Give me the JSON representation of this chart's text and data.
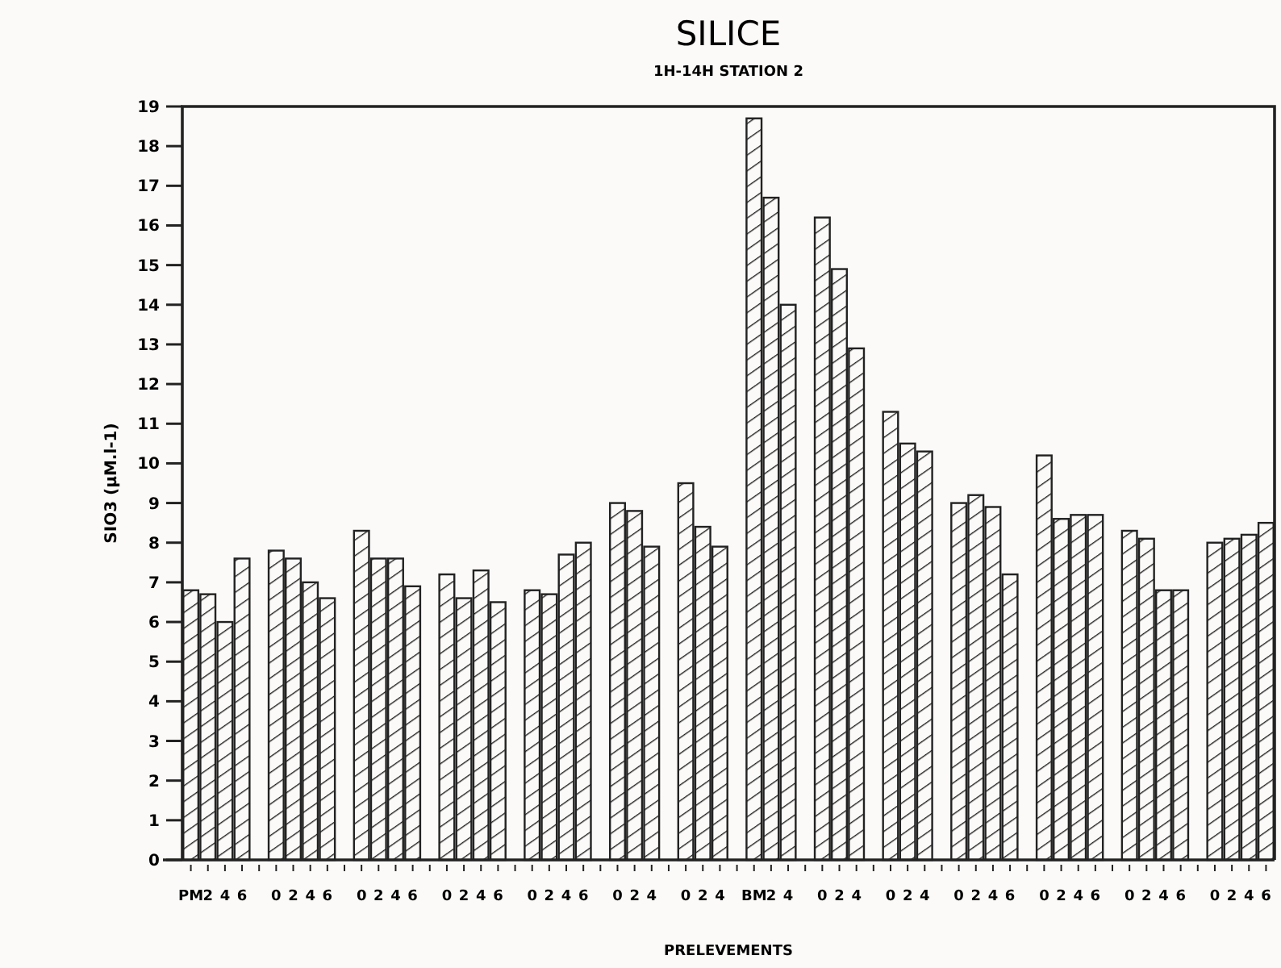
{
  "chart_data": {
    "type": "bar",
    "title": "SILICE",
    "subtitle": "1H-14H STATION 2",
    "xlabel": "PRELEVEMENTS",
    "ylabel": "SIO3 (µM.l-1)",
    "categories": [
      "PM",
      "2",
      "4",
      "6",
      null,
      "0",
      "2",
      "4",
      "6",
      null,
      "0",
      "2",
      "4",
      "6",
      null,
      "0",
      "2",
      "4",
      "6",
      null,
      "0",
      "2",
      "4",
      "6",
      null,
      "0",
      "2",
      "4",
      null,
      "0",
      "2",
      "4",
      null,
      "BM",
      "2",
      "4",
      null,
      "0",
      "2",
      "4",
      null,
      "0",
      "2",
      "4",
      null,
      "0",
      "2",
      "4",
      "6",
      null,
      "0",
      "2",
      "4",
      "6",
      null,
      "0",
      "2",
      "4",
      "6",
      null,
      "0",
      "2",
      "4",
      "6"
    ],
    "values": [
      6.8,
      6.7,
      6.0,
      7.6,
      null,
      7.8,
      7.6,
      7.0,
      6.6,
      null,
      8.3,
      7.6,
      7.6,
      6.9,
      null,
      7.2,
      6.6,
      7.3,
      6.5,
      null,
      6.8,
      6.7,
      7.7,
      8.0,
      null,
      9.0,
      8.8,
      7.9,
      null,
      9.5,
      8.4,
      7.9,
      null,
      18.7,
      16.7,
      14.0,
      null,
      16.2,
      14.9,
      12.9,
      null,
      11.3,
      10.5,
      10.3,
      null,
      9.0,
      9.2,
      8.9,
      7.2,
      null,
      10.2,
      8.6,
      8.7,
      8.7,
      null,
      8.3,
      8.1,
      6.8,
      6.8,
      null,
      8.0,
      8.1,
      8.2,
      8.5
    ],
    "color": "#222222",
    "ylim": [
      0,
      19
    ],
    "yticks": [
      0,
      1,
      2,
      3,
      4,
      5,
      6,
      7,
      8,
      9,
      10,
      11,
      12,
      13,
      14,
      15,
      16,
      17,
      18,
      19
    ],
    "grid": false
  }
}
